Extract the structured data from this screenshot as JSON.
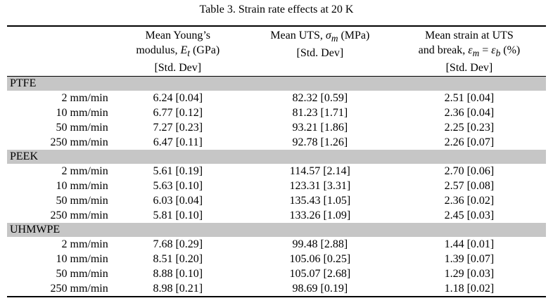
{
  "caption": "Table 3. Strain rate effects at 20 K",
  "header": {
    "col1_line1": "Mean Young’s",
    "col1_line2_pre": "modulus, ",
    "col1_symbol": "E",
    "col1_sub": "t",
    "col1_line2_post": " (GPa)",
    "col1_line3": "[Std. Dev]",
    "col2_line1_pre": "Mean UTS, ",
    "col2_symbol": "σ",
    "col2_sub": "m",
    "col2_line1_post": " (MPa)",
    "col2_line2": "[Std. Dev]",
    "col3_line1": "Mean strain at UTS",
    "col3_line2_pre": "and break, ",
    "col3_symbol_a": "ε",
    "col3_sub_a": "m",
    "col3_eq": " = ",
    "col3_symbol_b": "ε",
    "col3_sub_b": "b",
    "col3_line2_post": " (%)",
    "col3_line3": "[Std. Dev]"
  },
  "groups": [
    {
      "name": "PTFE",
      "rows": [
        {
          "rate": "2 mm/min",
          "modulus": "6.24 [0.04]",
          "uts": "82.32 [0.59]",
          "strain": "2.51 [0.04]"
        },
        {
          "rate": "10 mm/min",
          "modulus": "6.77 [0.12]",
          "uts": "81.23 [1.71]",
          "strain": "2.36 [0.04]"
        },
        {
          "rate": "50 mm/min",
          "modulus": "7.27 [0.23]",
          "uts": "93.21 [1.86]",
          "strain": "2.25 [0.23]"
        },
        {
          "rate": "250 mm/min",
          "modulus": "6.47 [0.11]",
          "uts": "92.78 [1.26]",
          "strain": "2.26 [0.07]"
        }
      ]
    },
    {
      "name": "PEEK",
      "rows": [
        {
          "rate": "2 mm/min",
          "modulus": "5.61 [0.19]",
          "uts": "114.57 [2.14]",
          "strain": "2.70 [0.06]"
        },
        {
          "rate": "10 mm/min",
          "modulus": "5.63 [0.10]",
          "uts": "123.31 [3.31]",
          "strain": "2.57 [0.08]"
        },
        {
          "rate": "50 mm/min",
          "modulus": "6.03 [0.04]",
          "uts": "135.43 [1.05]",
          "strain": "2.36 [0.02]"
        },
        {
          "rate": "250 mm/min",
          "modulus": "5.81 [0.10]",
          "uts": "133.26 [1.09]",
          "strain": "2.45 [0.03]"
        }
      ]
    },
    {
      "name": "UHMWPE",
      "rows": [
        {
          "rate": "2 mm/min",
          "modulus": "7.68 [0.29]",
          "uts": "99.48 [2.88]",
          "strain": "1.44 [0.01]"
        },
        {
          "rate": "10 mm/min",
          "modulus": "8.51 [0.20]",
          "uts": "105.06 [0.25]",
          "strain": "1.39 [0.07]"
        },
        {
          "rate": "50 mm/min",
          "modulus": "8.88 [0.10]",
          "uts": "105.07 [2.68]",
          "strain": "1.29 [0.03]"
        },
        {
          "rate": "250 mm/min",
          "modulus": "8.98 [0.21]",
          "uts": "98.69 [0.19]",
          "strain": "1.18 [0.02]"
        }
      ]
    }
  ]
}
